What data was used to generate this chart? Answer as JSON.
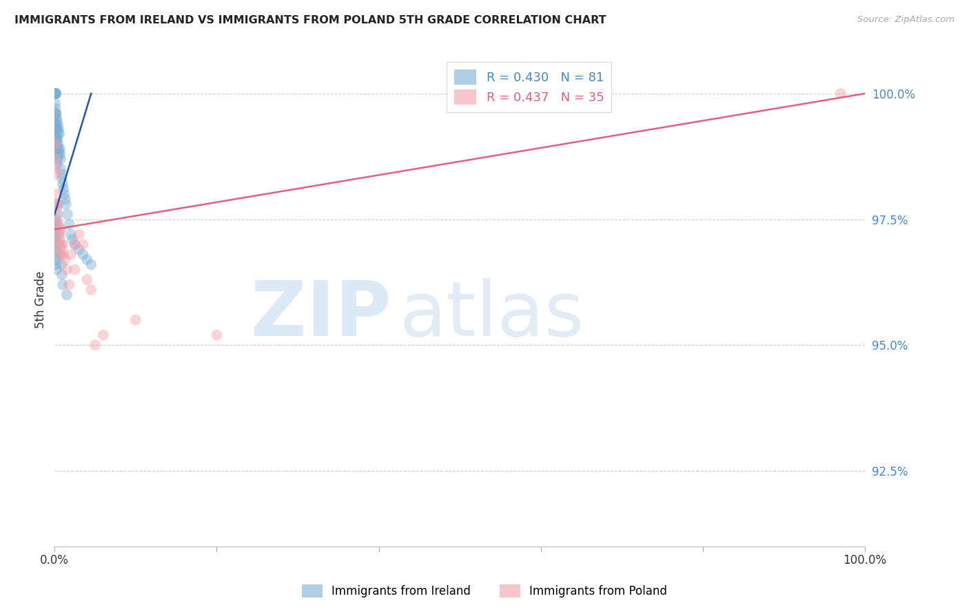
{
  "title": "IMMIGRANTS FROM IRELAND VS IMMIGRANTS FROM POLAND 5TH GRADE CORRELATION CHART",
  "source": "Source: ZipAtlas.com",
  "ylabel": "5th Grade",
  "ireland_R": 0.43,
  "ireland_N": 81,
  "poland_R": 0.437,
  "poland_N": 35,
  "ireland_color": "#7BAFD4",
  "poland_color": "#F4A0A8",
  "ireland_line_color": "#2255AA",
  "poland_line_color": "#E06080",
  "xlim": [
    0.0,
    100.0
  ],
  "ylim": [
    91.0,
    100.8
  ],
  "y_ticks": [
    92.5,
    95.0,
    97.5,
    100.0
  ],
  "y_tick_labels": [
    "92.5%",
    "95.0%",
    "97.5%",
    "100.0%"
  ],
  "ireland_x": [
    0.05,
    0.06,
    0.07,
    0.08,
    0.08,
    0.09,
    0.09,
    0.1,
    0.1,
    0.1,
    0.1,
    0.1,
    0.12,
    0.13,
    0.14,
    0.15,
    0.15,
    0.16,
    0.17,
    0.18,
    0.2,
    0.2,
    0.2,
    0.22,
    0.23,
    0.25,
    0.27,
    0.28,
    0.3,
    0.32,
    0.33,
    0.35,
    0.38,
    0.4,
    0.42,
    0.45,
    0.5,
    0.5,
    0.55,
    0.6,
    0.65,
    0.7,
    0.75,
    0.8,
    0.85,
    0.9,
    1.0,
    1.1,
    1.2,
    1.3,
    1.4,
    1.6,
    1.8,
    2.0,
    2.2,
    2.5,
    3.0,
    3.5,
    4.0,
    4.5,
    0.05,
    0.06,
    0.07,
    0.08,
    0.09,
    0.1,
    0.12,
    0.15,
    0.18,
    0.2,
    0.25,
    0.3,
    0.35,
    0.4,
    0.5,
    0.6,
    0.7,
    0.8,
    0.9,
    1.0,
    1.5
  ],
  "ireland_y": [
    100.0,
    100.0,
    100.0,
    100.0,
    100.0,
    100.0,
    100.0,
    100.0,
    100.0,
    100.0,
    99.8,
    99.7,
    99.6,
    99.5,
    99.4,
    99.3,
    99.6,
    99.2,
    99.1,
    99.0,
    100.0,
    99.6,
    99.4,
    99.3,
    99.1,
    99.0,
    98.8,
    98.6,
    99.5,
    99.3,
    99.1,
    98.9,
    98.7,
    99.4,
    99.2,
    99.0,
    99.3,
    98.9,
    98.8,
    99.2,
    98.9,
    98.8,
    98.7,
    98.5,
    98.4,
    98.3,
    98.2,
    98.1,
    98.0,
    97.9,
    97.8,
    97.6,
    97.4,
    97.2,
    97.1,
    97.0,
    96.9,
    96.8,
    96.7,
    96.6,
    97.5,
    97.4,
    97.3,
    97.2,
    97.1,
    97.0,
    96.9,
    96.8,
    96.7,
    96.6,
    96.5,
    97.8,
    97.6,
    97.4,
    97.2,
    97.0,
    96.8,
    96.6,
    96.4,
    96.2,
    96.0
  ],
  "poland_x": [
    0.1,
    0.12,
    0.15,
    0.2,
    0.2,
    0.25,
    0.3,
    0.35,
    0.4,
    0.45,
    0.5,
    0.55,
    0.6,
    0.65,
    0.7,
    0.8,
    0.85,
    0.9,
    1.0,
    1.1,
    1.3,
    1.5,
    1.8,
    2.0,
    2.5,
    2.5,
    3.0,
    3.5,
    4.0,
    4.5,
    5.0,
    6.0,
    10.0,
    20.0,
    97.0
  ],
  "poland_y": [
    99.0,
    98.7,
    98.4,
    98.5,
    97.8,
    98.0,
    97.7,
    97.5,
    97.8,
    97.4,
    97.0,
    97.3,
    97.1,
    97.2,
    96.8,
    97.3,
    96.9,
    97.0,
    97.0,
    96.8,
    96.7,
    96.5,
    96.2,
    96.8,
    96.5,
    97.0,
    97.2,
    97.0,
    96.3,
    96.1,
    95.0,
    95.2,
    95.5,
    95.2,
    100.0
  ],
  "ireland_reg_start_x": 0.0,
  "ireland_reg_start_y": 97.6,
  "ireland_reg_end_x": 4.5,
  "ireland_reg_end_y": 100.0,
  "poland_reg_start_x": 0.0,
  "poland_reg_start_y": 97.3,
  "poland_reg_end_x": 100.0,
  "poland_reg_end_y": 100.0
}
